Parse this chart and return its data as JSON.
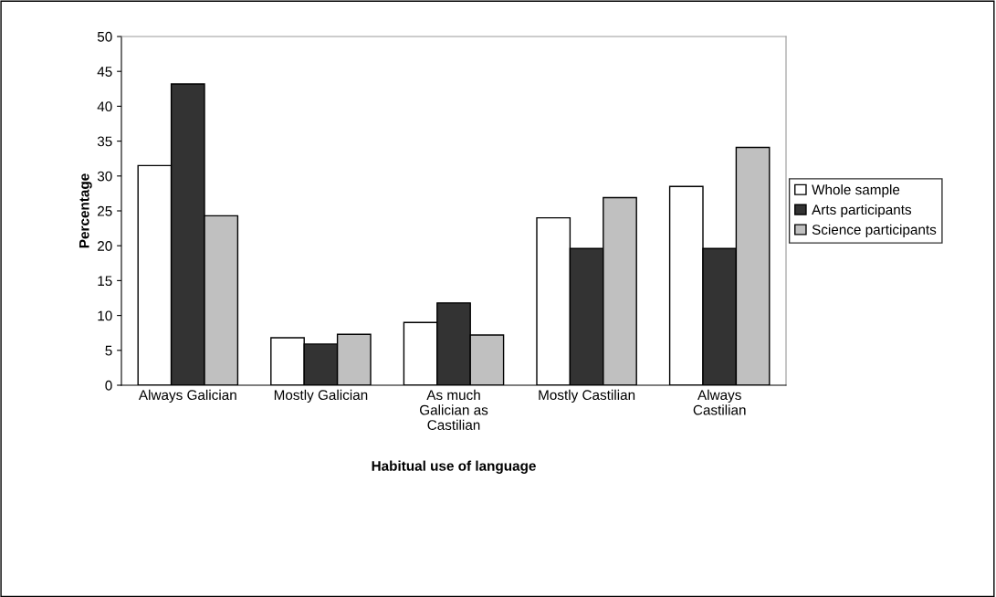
{
  "chart_data": {
    "type": "bar",
    "xlabel": "Habitual use of language",
    "ylabel": "Percentage",
    "categories": [
      "Always Galician",
      "Mostly Galician",
      "As much\nGalician as\nCastilian",
      "Mostly Castilian",
      "Always\nCastilian"
    ],
    "series": [
      {
        "name": "Whole sample",
        "color": "#ffffff",
        "values": [
          31.5,
          6.8,
          9.0,
          24.0,
          28.5
        ]
      },
      {
        "name": "Arts participants",
        "color": "#333333",
        "values": [
          43.2,
          5.9,
          11.8,
          19.6,
          19.6
        ]
      },
      {
        "name": "Science participants",
        "color": "#c0c0c0",
        "values": [
          24.3,
          7.3,
          7.2,
          26.9,
          34.1
        ]
      }
    ],
    "ylim": [
      0,
      50
    ],
    "yticks": [
      0,
      5,
      10,
      15,
      20,
      25,
      30,
      35,
      40,
      45,
      50
    ],
    "grid": false,
    "legend": "right"
  }
}
